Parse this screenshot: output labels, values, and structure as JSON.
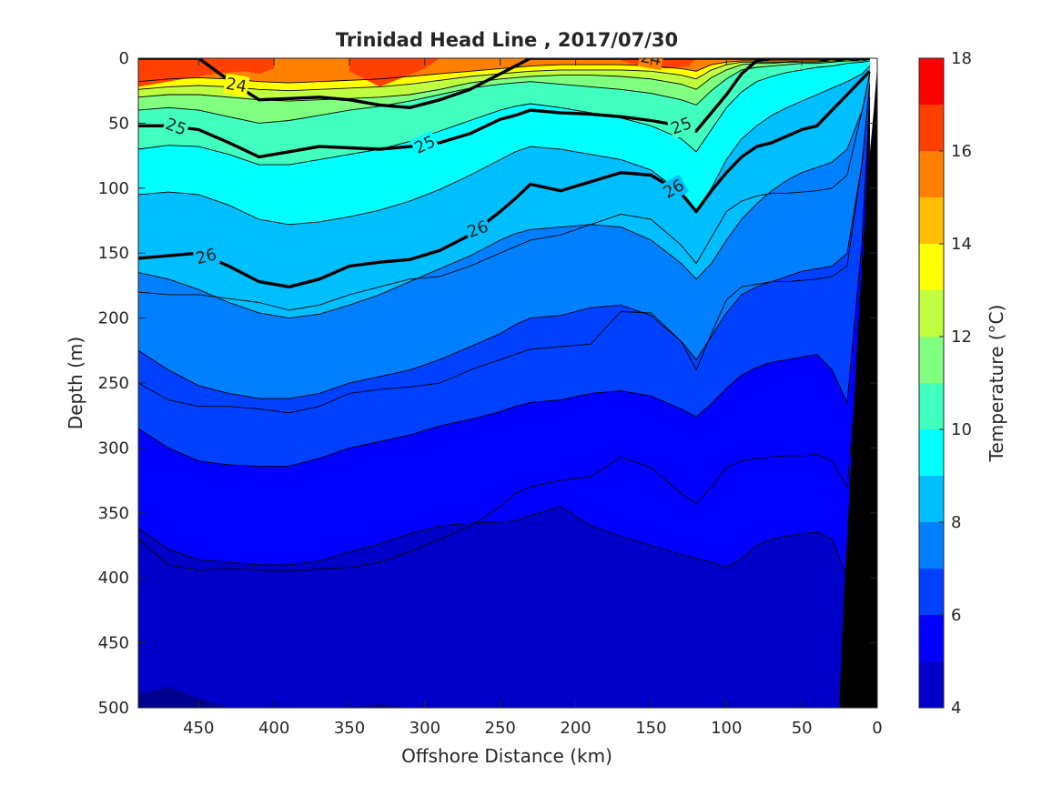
{
  "chart_data": {
    "type": "heatmap",
    "subtype": "filled-contour section",
    "title": "Trinidad Head Line , 2017/07/30",
    "xlabel": "Offshore Distance (km)",
    "ylabel": "Depth (m)",
    "xlim": [
      490,
      0
    ],
    "ylim": [
      0,
      500
    ],
    "x_reversed": true,
    "y_reversed": true,
    "x_ticks": [
      "450",
      "400",
      "350",
      "300",
      "250",
      "200",
      "150",
      "100",
      "50",
      "0"
    ],
    "y_ticks": [
      "0",
      "50",
      "100",
      "150",
      "200",
      "250",
      "300",
      "350",
      "400",
      "450",
      "500"
    ],
    "colorbar": {
      "label": "Temperature (°C)",
      "limits": [
        4,
        18
      ],
      "ticks": [
        "4",
        "6",
        "8",
        "10",
        "12",
        "14",
        "16",
        "18"
      ],
      "levels": [
        4,
        5,
        6,
        7,
        8,
        9,
        10,
        11,
        12,
        13,
        14,
        15,
        16,
        17,
        18
      ],
      "colors": [
        "#00008f",
        "#0000c8",
        "#0000ff",
        "#0040ff",
        "#0080ff",
        "#00bfff",
        "#00ffff",
        "#40ffbf",
        "#80ff80",
        "#bfff40",
        "#ffff00",
        "#ffbf00",
        "#ff8000",
        "#ff4000",
        "#ff0000",
        "#c80000"
      ]
    },
    "x": [
      490,
      470,
      450,
      430,
      410,
      390,
      370,
      350,
      330,
      310,
      290,
      270,
      250,
      240,
      230,
      210,
      190,
      170,
      150,
      130,
      120,
      110,
      100,
      90,
      80,
      70,
      60,
      50,
      40,
      30,
      20,
      10,
      5
    ],
    "isotherms": [
      {
        "temp": 15,
        "depth": [
          18,
          16,
          15,
          16,
          18,
          19,
          18,
          17,
          16,
          14,
          12,
          10,
          8,
          7,
          6,
          5,
          5,
          5,
          6,
          8,
          10,
          5,
          3,
          2,
          2,
          2,
          2,
          2,
          2,
          1,
          1,
          1,
          1
        ]
      },
      {
        "temp": 14,
        "depth": [
          24,
          22,
          21,
          22,
          24,
          25,
          24,
          23,
          22,
          20,
          17,
          14,
          12,
          11,
          10,
          9,
          9,
          9,
          10,
          13,
          16,
          9,
          5,
          3,
          3,
          3,
          3,
          2,
          2,
          2,
          1,
          1,
          1
        ]
      },
      {
        "temp": 13,
        "depth": [
          30,
          28,
          28,
          30,
          32,
          33,
          32,
          31,
          30,
          28,
          24,
          19,
          16,
          15,
          14,
          13,
          13,
          14,
          16,
          20,
          24,
          15,
          9,
          5,
          4,
          4,
          3,
          3,
          3,
          2,
          2,
          1,
          1
        ]
      },
      {
        "temp": 12,
        "depth": [
          40,
          38,
          40,
          45,
          50,
          48,
          44,
          40,
          37,
          33,
          28,
          23,
          20,
          19,
          18,
          20,
          22,
          24,
          27,
          32,
          36,
          25,
          16,
          9,
          7,
          6,
          5,
          4,
          4,
          3,
          2,
          2,
          1
        ]
      },
      {
        "temp": 11,
        "depth": [
          70,
          67,
          68,
          74,
          82,
          82,
          78,
          74,
          70,
          64,
          56,
          48,
          40,
          37,
          35,
          38,
          42,
          46,
          52,
          62,
          72,
          55,
          38,
          26,
          18,
          14,
          11,
          9,
          7,
          6,
          4,
          3,
          2
        ]
      },
      {
        "temp": 10,
        "depth": [
          105,
          103,
          105,
          113,
          124,
          128,
          126,
          122,
          117,
          110,
          101,
          90,
          78,
          72,
          68,
          70,
          74,
          78,
          86,
          104,
          118,
          100,
          78,
          62,
          52,
          44,
          38,
          33,
          28,
          23,
          18,
          12,
          6
        ]
      },
      {
        "temp": 9,
        "depth": [
          165,
          170,
          178,
          188,
          196,
          200,
          197,
          190,
          182,
          172,
          162,
          152,
          140,
          135,
          132,
          130,
          128,
          130,
          140,
          158,
          170,
          158,
          140,
          124,
          112,
          102,
          94,
          88,
          84,
          80,
          70,
          40,
          12
        ]
      },
      {
        "temp": 8,
        "depth": [
          225,
          240,
          252,
          258,
          262,
          262,
          258,
          250,
          245,
          240,
          232,
          222,
          212,
          205,
          200,
          198,
          192,
          190,
          198,
          218,
          232,
          214,
          196,
          182,
          176,
          172,
          168,
          164,
          162,
          160,
          150,
          80,
          20
        ]
      },
      {
        "temp": 7,
        "depth": [
          285,
          300,
          310,
          313,
          314,
          314,
          308,
          300,
          295,
          290,
          283,
          278,
          272,
          268,
          265,
          263,
          258,
          256,
          260,
          270,
          276,
          266,
          254,
          244,
          238,
          234,
          232,
          230,
          228,
          240,
          265,
          140,
          30
        ]
      },
      {
        "temp": 6,
        "depth": [
          362,
          378,
          386,
          388,
          390,
          390,
          387,
          380,
          374,
          366,
          360,
          358,
          357,
          356,
          352,
          345,
          360,
          368,
          375,
          382,
          385,
          388,
          392,
          385,
          375,
          370,
          368,
          366,
          365,
          370,
          400,
          260,
          40
        ]
      },
      {
        "temp": 5,
        "depth": [
          490,
          484,
          493,
          500,
          500,
          500,
          500,
          500,
          497,
          500,
          500,
          500,
          500,
          500,
          500,
          500,
          500,
          500,
          500,
          500,
          500,
          500,
          500,
          500,
          500,
          500,
          500,
          500,
          500,
          500,
          500,
          500,
          500
        ]
      }
    ],
    "warm_pockets_17C": [
      {
        "x": [
          490,
          470,
          460,
          450,
          440,
          420,
          410,
          400,
          400,
          410,
          420,
          440,
          460,
          490
        ],
        "depth": [
          0,
          0,
          0,
          0,
          0,
          0,
          0,
          0,
          8,
          12,
          10,
          12,
          16,
          22
        ]
      },
      {
        "x": [
          350,
          340,
          320,
          300,
          290,
          300,
          330,
          350
        ],
        "depth": [
          0,
          0,
          0,
          0,
          0,
          8,
          22,
          10
        ]
      },
      {
        "x": [
          170,
          160,
          140,
          120,
          125,
          140,
          160,
          170
        ],
        "depth": [
          0,
          0,
          0,
          0,
          6,
          8,
          5,
          2
        ]
      }
    ],
    "sigma_contours": [
      {
        "label": "24",
        "depth": [
          0,
          0,
          0,
          17,
          32,
          31,
          30,
          32,
          36,
          38,
          32,
          24,
          12,
          6,
          0,
          0,
          0,
          0,
          0,
          0,
          0,
          0,
          0,
          0,
          0,
          0,
          0,
          0,
          0,
          0,
          0,
          0,
          0
        ]
      },
      {
        "label": "25",
        "depth": [
          52,
          52,
          55,
          65,
          76,
          72,
          68,
          69,
          70,
          68,
          65,
          58,
          47,
          44,
          40,
          42,
          43,
          45,
          48,
          52,
          56,
          42,
          28,
          12,
          2,
          0,
          0,
          0,
          0,
          0,
          0,
          0,
          0
        ]
      },
      {
        "label": "26",
        "depth": [
          154,
          152,
          150,
          160,
          172,
          176,
          170,
          160,
          157,
          155,
          148,
          136,
          118,
          108,
          97,
          102,
          95,
          88,
          90,
          104,
          118,
          102,
          88,
          76,
          68,
          65,
          60,
          55,
          52,
          40,
          28,
          16,
          10
        ]
      },
      {
        "label": "",
        "depth": [
          180,
          182,
          182,
          185,
          188,
          194,
          190,
          182,
          176,
          170,
          168,
          160,
          150,
          145,
          140,
          136,
          128,
          120,
          124,
          144,
          158,
          138,
          118,
          110,
          106,
          104,
          104,
          103,
          102,
          100,
          90,
          40,
          12
        ]
      },
      {
        "label": "",
        "depth": [
          250,
          263,
          268,
          268,
          270,
          273,
          268,
          258,
          255,
          253,
          250,
          240,
          232,
          228,
          224,
          222,
          220,
          195,
          196,
          218,
          240,
          212,
          186,
          176,
          174,
          172,
          172,
          171,
          170,
          168,
          160,
          80,
          20
        ]
      },
      {
        "label": "",
        "depth": [
          370,
          390,
          394,
          393,
          394,
          395,
          393,
          392,
          388,
          380,
          370,
          360,
          345,
          335,
          330,
          325,
          322,
          307,
          315,
          335,
          343,
          330,
          315,
          310,
          308,
          307,
          306,
          306,
          305,
          310,
          330,
          200,
          30
        ]
      }
    ],
    "bathymetry": {
      "x": [
        25,
        22,
        18,
        14,
        10,
        6,
        2,
        0
      ],
      "depth": [
        500,
        420,
        330,
        240,
        160,
        90,
        40,
        10
      ],
      "color": "#000000"
    }
  }
}
